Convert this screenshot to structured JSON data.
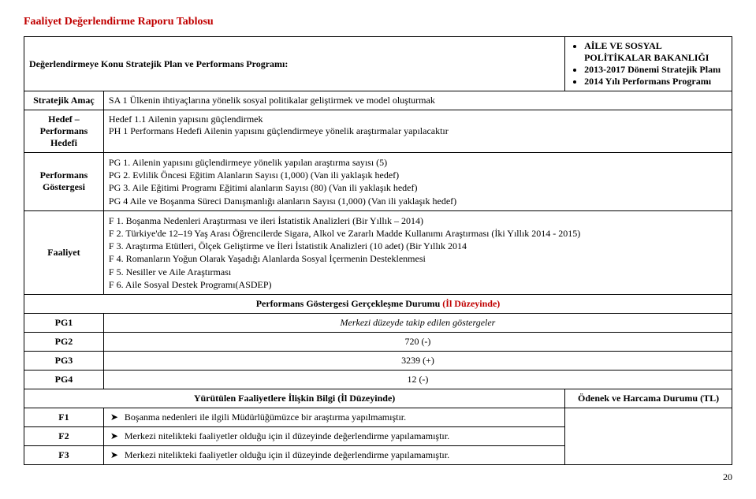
{
  "title": "Faaliyet Değerlendirme Raporu Tablosu",
  "topHeader": {
    "left": "Değerlendirmeye Konu Stratejik Plan ve Performans Programı:",
    "bullets": [
      "AİLE VE SOSYAL POLİTİKALAR BAKANLIĞI",
      "2013-2017 Dönemi Stratejik Planı",
      "2014 Yılı Performans Programı"
    ]
  },
  "rows": {
    "amac": {
      "label": "Stratejik Amaç",
      "text": "SA 1 Ülkenin ihtiyaçlarına yönelik sosyal politikalar geliştirmek ve model oluşturmak"
    },
    "hedef": {
      "label": "Hedef – Performans Hedefi",
      "line1": "Hedef 1.1 Ailenin yapısını güçlendirmek",
      "line2": "PH 1 Performans Hedefi Ailenin yapısını güçlendirmeye yönelik araştırmalar yapılacaktır"
    },
    "gosterge": {
      "label": "Performans Göstergesi",
      "items": [
        "PG 1. Ailenin yapısını güçlendirmeye yönelik yapılan araştırma sayısı (5)",
        "PG 2. Evlilik Öncesi Eğitim Alanların Sayısı (1,000) (Van ili yaklaşık hedef)",
        "PG 3. Aile Eğitimi Programı Eğitimi alanların Sayısı (80) (Van ili yaklaşık hedef)",
        "PG 4 Aile ve Boşanma Süreci Danışmanlığı alanların Sayısı (1,000)  (Van ili yaklaşık hedef)"
      ]
    },
    "faaliyet": {
      "label": "Faaliyet",
      "items": [
        "F 1. Boşanma Nedenleri Araştırması ve ileri İstatistik Analizleri  (Bir Yıllık – 2014)",
        "F 2. Türkiye'de 12–19 Yaş Arası Öğrencilerde Sigara, Alkol ve Zararlı Madde Kullanımı Araştırması (İki Yıllık 2014 - 2015)",
        "F 3. Araştırma Etütleri, Ölçek Geliştirme ve İleri İstatistik Analizleri (10 adet) (Bir Yıllık 2014",
        "F 4. Romanların Yoğun Olarak Yaşadığı Alanlarda Sosyal İçermenin Desteklenmesi",
        "F 5. Nesiller ve Aile Araştırması",
        "F 6. Aile Sosyal Destek Programı(ASDEP)"
      ]
    }
  },
  "perfSection": {
    "header": "Performans Göstergesi Gerçekleşme Durumu",
    "suffix": "(İl Düzeyinde)",
    "pg1": {
      "label": "PG1",
      "value": "Merkezi düzeyde takip edilen göstergeler"
    },
    "pg2": {
      "label": "PG2",
      "value": "720 (-)"
    },
    "pg3": {
      "label": "PG3",
      "value": "3239 (+)"
    },
    "pg4": {
      "label": "PG4",
      "value": "12 (-)"
    }
  },
  "bottomSection": {
    "leftHeader": "Yürütülen Faaliyetlere İlişkin Bilgi (İl Düzeyinde)",
    "rightHeader": "Ödenek ve Harcama Durumu (TL)",
    "f1": {
      "label": "F1",
      "text": "Boşanma nedenleri ile ilgili Müdürlüğümüzce bir araştırma yapılmamıştır."
    },
    "f2": {
      "label": "F2",
      "text": "Merkezi nitelikteki faaliyetler olduğu için il düzeyinde değerlendirme yapılamamıştır."
    },
    "f3": {
      "label": "F3",
      "text": "Merkezi nitelikteki faaliyetler olduğu için il düzeyinde değerlendirme yapılamamıştır."
    }
  },
  "pageNumber": "20",
  "layout": {
    "col1": "100px",
    "col2": "580px",
    "col3": "210px"
  }
}
